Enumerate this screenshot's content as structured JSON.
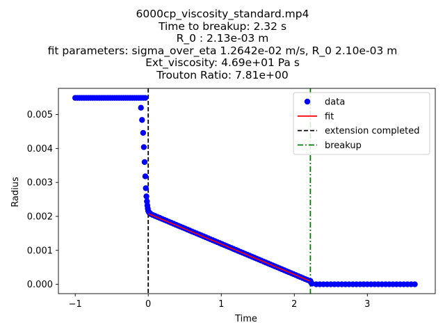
{
  "chart_data": {
    "type": "scatter",
    "title_lines": [
      "6000cp_viscosity_standard.mp4",
      "Time to breakup: 2.32 s",
      "R_0 : 2.13e-03 m",
      "fit parameters: sigma_over_eta 1.2642e-02 m/s, R_0 2.10e-03 m",
      "Ext_viscosity: 4.69e+01 Pa s",
      "Trouton Ratio: 7.81e+00"
    ],
    "xlabel": "Time",
    "ylabel": "Radius",
    "xlim": [
      -1.23,
      3.93
    ],
    "ylim": [
      -0.000275,
      0.00577
    ],
    "xticks": [
      -1,
      0,
      1,
      2,
      3
    ],
    "xtick_labels": [
      "−1",
      "0",
      "1",
      "2",
      "3"
    ],
    "yticks": [
      0,
      0.001,
      0.002,
      0.003,
      0.004,
      0.005
    ],
    "ytick_labels": [
      "0.000",
      "0.001",
      "0.002",
      "0.003",
      "0.004",
      "0.005"
    ],
    "grid": false,
    "legend_position": "upper right",
    "legend": [
      {
        "label": "data",
        "kind": "marker",
        "color": "#0000ff"
      },
      {
        "label": "fit",
        "kind": "line",
        "color": "#ff0000",
        "dash": "solid"
      },
      {
        "label": "extension completed",
        "kind": "line",
        "color": "#000000",
        "dash": "dashed"
      },
      {
        "label": "breakup",
        "kind": "line",
        "color": "#008000",
        "dash": "dashdot"
      }
    ],
    "series": [
      {
        "name": "data",
        "kind": "scatter",
        "color": "#0000ff",
        "points": [
          [
            -1.0,
            0.00549
          ],
          [
            -0.97,
            0.00549
          ],
          [
            -0.94,
            0.00549
          ],
          [
            -0.91,
            0.00549
          ],
          [
            -0.88,
            0.00549
          ],
          [
            -0.85,
            0.00549
          ],
          [
            -0.82,
            0.00549
          ],
          [
            -0.79,
            0.00549
          ],
          [
            -0.76,
            0.00549
          ],
          [
            -0.73,
            0.00549
          ],
          [
            -0.7,
            0.00549
          ],
          [
            -0.67,
            0.00549
          ],
          [
            -0.64,
            0.00549
          ],
          [
            -0.61,
            0.00549
          ],
          [
            -0.58,
            0.00549
          ],
          [
            -0.55,
            0.00549
          ],
          [
            -0.52,
            0.00549
          ],
          [
            -0.49,
            0.00549
          ],
          [
            -0.46,
            0.00549
          ],
          [
            -0.43,
            0.00549
          ],
          [
            -0.4,
            0.00549
          ],
          [
            -0.37,
            0.00549
          ],
          [
            -0.34,
            0.00549
          ],
          [
            -0.31,
            0.00549
          ],
          [
            -0.28,
            0.00549
          ],
          [
            -0.25,
            0.00549
          ],
          [
            -0.22,
            0.00549
          ],
          [
            -0.19,
            0.00549
          ],
          [
            -0.16,
            0.00549
          ],
          [
            -0.13,
            0.00549
          ],
          [
            -0.1,
            0.00549
          ],
          [
            -0.07,
            0.00549
          ],
          [
            -0.04,
            0.00549
          ],
          [
            -0.1,
            0.0052
          ],
          [
            -0.085,
            0.00484
          ],
          [
            -0.07,
            0.00446
          ],
          [
            -0.06,
            0.00404
          ],
          [
            -0.05,
            0.0036
          ],
          [
            -0.04,
            0.00318
          ],
          [
            -0.033,
            0.00283
          ],
          [
            -0.025,
            0.00259
          ],
          [
            -0.018,
            0.00244
          ],
          [
            -0.012,
            0.00232
          ],
          [
            -0.006,
            0.00223
          ],
          [
            0.0,
            0.00216
          ],
          [
            0.01,
            0.00212
          ],
          [
            0.02,
            0.0021
          ],
          [
            0.03,
            0.00208
          ]
        ]
      },
      {
        "name": "data",
        "kind": "scatter_dense",
        "color": "#0000ff",
        "x_start": 0.03,
        "x_end": 2.21,
        "y_start": 0.00207,
        "y_end": 0.0001,
        "count": 70
      },
      {
        "name": "data",
        "kind": "scatter",
        "color": "#0000ff",
        "points": [
          [
            2.22,
            0.0001
          ],
          [
            2.23,
            5e-05
          ],
          [
            2.24,
            2e-05
          ],
          [
            2.3,
            0.0
          ],
          [
            2.35,
            0.0
          ],
          [
            2.4,
            0.0
          ],
          [
            2.45,
            0.0
          ],
          [
            2.5,
            0.0
          ],
          [
            2.55,
            0.0
          ],
          [
            2.6,
            0.0
          ],
          [
            2.65,
            0.0
          ],
          [
            2.7,
            0.0
          ],
          [
            2.75,
            0.0
          ],
          [
            2.8,
            0.0
          ],
          [
            2.85,
            0.0
          ],
          [
            2.9,
            0.0
          ],
          [
            2.95,
            0.0
          ],
          [
            3.0,
            0.0
          ],
          [
            3.05,
            0.0
          ],
          [
            3.1,
            0.0
          ],
          [
            3.15,
            0.0
          ],
          [
            3.2,
            0.0
          ],
          [
            3.25,
            0.0
          ],
          [
            3.3,
            0.0
          ],
          [
            3.35,
            0.0
          ],
          [
            3.4,
            0.0
          ],
          [
            3.45,
            0.0
          ],
          [
            3.5,
            0.0
          ],
          [
            3.55,
            0.0
          ],
          [
            3.6,
            0.0
          ],
          [
            3.65,
            0.0
          ]
        ]
      },
      {
        "name": "fit",
        "kind": "line",
        "color": "#ff0000",
        "points": [
          [
            0.0,
            0.00208
          ],
          [
            2.21,
            0.0001
          ]
        ]
      }
    ],
    "vlines": [
      {
        "name": "extension completed",
        "x": 0.0,
        "color": "#000000",
        "dash": "dashed"
      },
      {
        "name": "breakup",
        "x": 2.22,
        "color": "#008000",
        "dash": "dashdot"
      }
    ]
  }
}
